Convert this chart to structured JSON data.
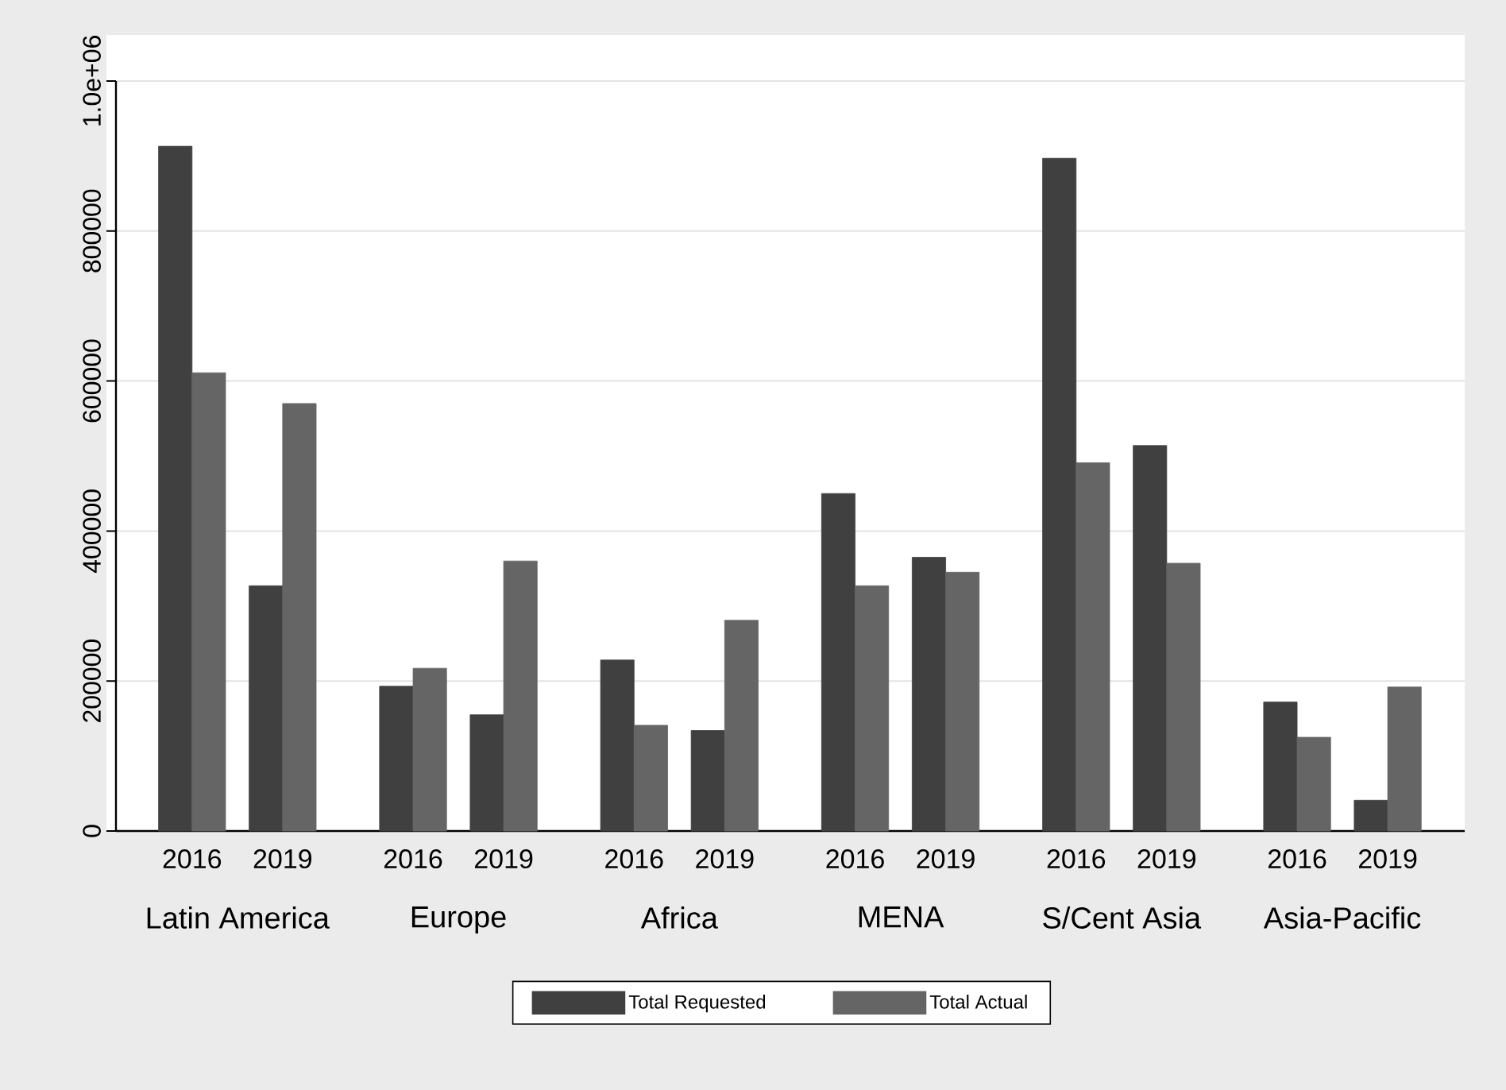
{
  "chart_data": {
    "type": "bar",
    "categories": [
      "2016",
      "2019",
      "2016",
      "2019",
      "2016",
      "2019",
      "2016",
      "2019",
      "2016",
      "2019",
      "2016",
      "2019"
    ],
    "series": [
      {
        "name": "Total Requested",
        "color": "#404040",
        "values": [
          913000,
          327000,
          193000,
          155000,
          228000,
          134000,
          450000,
          365000,
          897000,
          514000,
          172000,
          41000
        ]
      },
      {
        "name": "Total Actual",
        "color": "#656565",
        "values": [
          611000,
          570000,
          217000,
          360000,
          141000,
          281000,
          327000,
          345000,
          491000,
          357000,
          125000,
          192000
        ]
      }
    ],
    "annotations": [
      "Latin America",
      "Europe",
      "Africa",
      "MENA",
      "S/Cent Asia",
      "Asia-Pacific"
    ],
    "ylim": [
      0,
      1000000
    ],
    "yticks": [
      0,
      200000,
      400000,
      600000,
      800000,
      {
        "value": 1000000,
        "label": "1.0e+06"
      }
    ],
    "grid": "y",
    "legend": "bottom"
  }
}
